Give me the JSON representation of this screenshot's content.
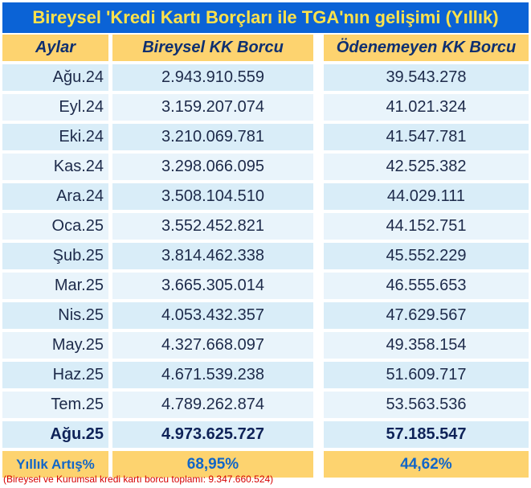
{
  "title": "Bireysel 'Kredi Kartı Borçları ile TGA'nın gelişimi (Yıllık)",
  "colors": {
    "title_bg": "#0b63d6",
    "title_text": "#ffe24a",
    "header_bg": "#fdd36f",
    "row_bg": "#d9edf8",
    "note_text": "#d40000"
  },
  "chart_data": {
    "type": "table",
    "title": "Bireysel 'Kredi Kartı Borçları ile TGA'nın gelişimi (Yıllık)",
    "columns": [
      "Aylar",
      "Bireysel KK Borcu",
      "Ödenemeyen KK Borcu"
    ],
    "rows": [
      [
        "Ağu.24",
        "2.943.910.559",
        "39.543.278"
      ],
      [
        "Eyl.24",
        "3.159.207.074",
        "41.021.324"
      ],
      [
        "Eki.24",
        "3.210.069.781",
        "41.547.781"
      ],
      [
        "Kas.24",
        "3.298.066.095",
        "42.525.382"
      ],
      [
        "Ara.24",
        "3.508.104.510",
        "44.029.111"
      ],
      [
        "Oca.25",
        "3.552.452.821",
        "44.152.751"
      ],
      [
        "Şub.25",
        "3.814.462.338",
        "45.552.229"
      ],
      [
        "Mar.25",
        "3.665.305.014",
        "46.555.653"
      ],
      [
        "Nis.25",
        "4.053.432.357",
        "47.629.567"
      ],
      [
        "May.25",
        "4.327.668.097",
        "49.358.154"
      ],
      [
        "Haz.25",
        "4.671.539.238",
        "51.609.717"
      ],
      [
        "Tem.25",
        "4.789.262.874",
        "53.563.536"
      ],
      [
        "Ağu.25",
        "4.973.625.727",
        "57.185.547"
      ]
    ],
    "footer": [
      "Yıllık Artış%",
      "68,95%",
      "44,62%"
    ]
  },
  "note": "(Bireysel ve Kurumsal kredi kartı borcu toplamı: 9.347.660.524)"
}
